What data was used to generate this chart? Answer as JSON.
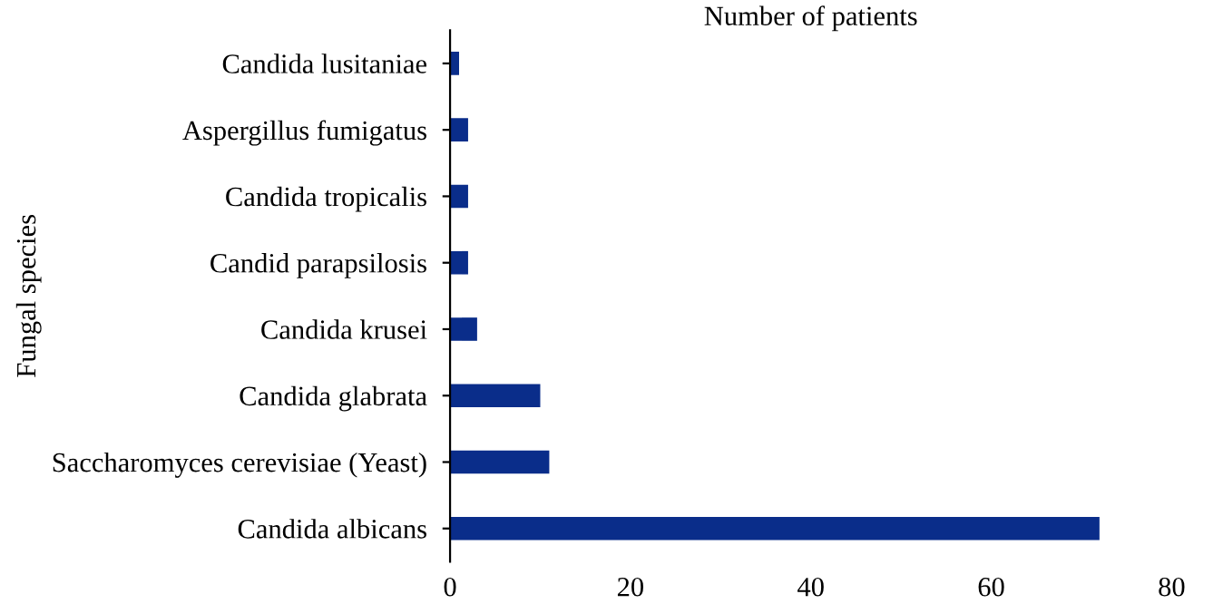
{
  "chart_data": {
    "type": "bar",
    "orientation": "horizontal",
    "xlabel": "Number of patients",
    "ylabel": "Fungal species",
    "categories": [
      "Candida lusitaniae",
      "Aspergillus fumigatus",
      "Candida tropicalis",
      "Candid parapsilosis",
      "Candida krusei",
      "Candida glabrata",
      "Saccharomyces cerevisiae (Yeast)",
      "Candida albicans"
    ],
    "values": [
      1,
      2,
      2,
      2,
      3,
      10,
      11,
      72
    ],
    "color": "#0a2d8a",
    "xlim": [
      0,
      80
    ],
    "xticks": [
      0,
      20,
      40,
      60,
      80
    ],
    "grid": false,
    "legend": false
  }
}
